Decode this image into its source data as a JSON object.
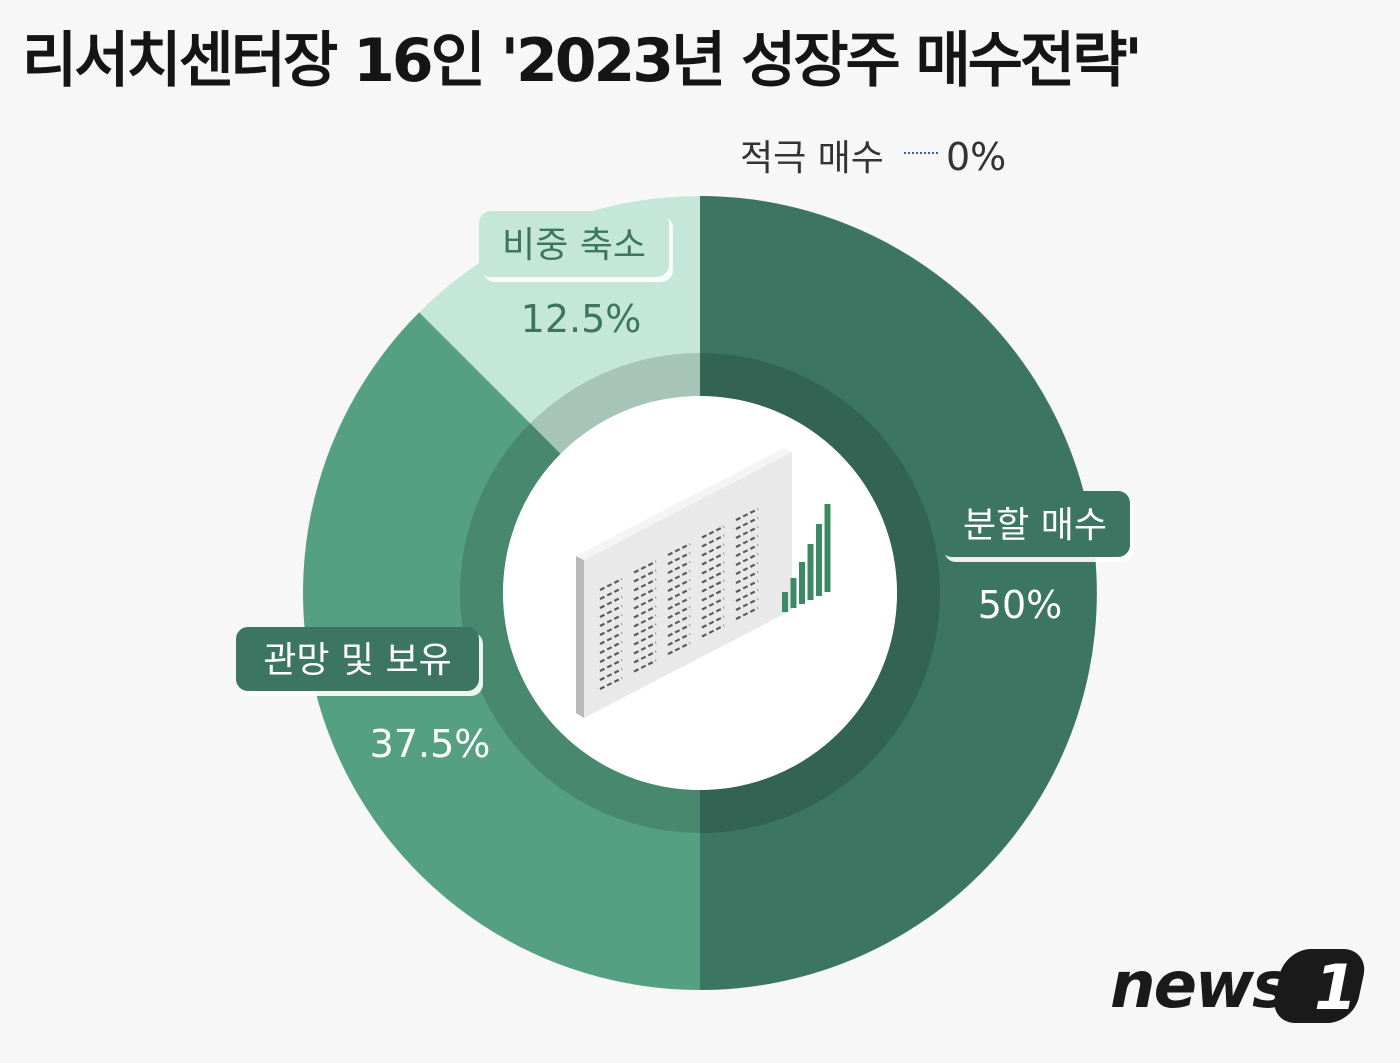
{
  "title": "리서치센터장 16인 '2023년 성장주 매수전략'",
  "chart_data": {
    "type": "pie",
    "categories": [
      "분할 매수",
      "관망 및 보유",
      "비중 축소",
      "적극 매수"
    ],
    "values": [
      50,
      37.5,
      12.5,
      0
    ],
    "value_labels": [
      "50%",
      "37.5%",
      "12.5%",
      "0%"
    ],
    "colors": [
      "#3c7562",
      "#55a083",
      "#c5e7d9",
      "#3d5f9a"
    ]
  },
  "logo": {
    "text": "news",
    "number": "1"
  }
}
